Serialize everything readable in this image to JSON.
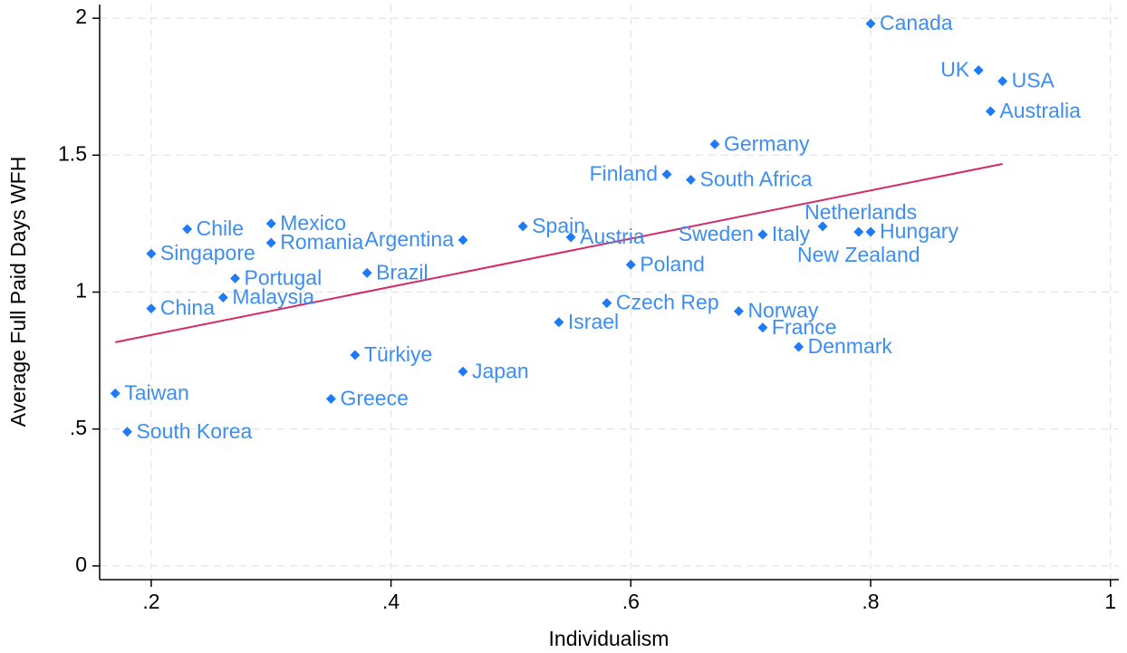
{
  "chart_data": {
    "type": "scatter",
    "x_label": "Individualism",
    "y_label": "Average Full Paid Days WFH",
    "labels": [
      "Canada",
      "UK",
      "USA",
      "Australia",
      "Germany",
      "Finland",
      "South Africa",
      "Netherlands",
      "Italy",
      "Sweden",
      "Hungary",
      "New Zealand",
      "Argentina",
      "Spain",
      "Austria",
      "Poland",
      "Czech Rep",
      "Israel",
      "Norway",
      "France",
      "Denmark",
      "Japan",
      "Greece",
      "Türkiye",
      "Brazil",
      "Mexico",
      "Romania",
      "Chile",
      "Singapore",
      "Portugal",
      "Malaysia",
      "China",
      "Taiwan",
      "South Korea"
    ],
    "x": [
      0.8,
      0.89,
      0.91,
      0.9,
      0.67,
      0.63,
      0.65,
      0.76,
      0.71,
      0.71,
      0.8,
      0.79,
      0.46,
      0.51,
      0.55,
      0.6,
      0.58,
      0.54,
      0.69,
      0.71,
      0.74,
      0.46,
      0.35,
      0.37,
      0.38,
      0.3,
      0.3,
      0.23,
      0.2,
      0.27,
      0.26,
      0.2,
      0.17,
      0.18
    ],
    "values": [
      1.98,
      1.81,
      1.77,
      1.66,
      1.54,
      1.43,
      1.41,
      1.24,
      1.21,
      1.21,
      1.22,
      1.22,
      1.19,
      1.24,
      1.2,
      1.1,
      0.96,
      0.89,
      0.93,
      0.87,
      0.8,
      0.71,
      0.61,
      0.77,
      1.07,
      1.25,
      1.18,
      1.23,
      1.14,
      1.05,
      0.98,
      0.94,
      0.63,
      0.49
    ],
    "color": "#1f7bf5",
    "fit_line": {
      "x": [
        0.17,
        0.91
      ],
      "y": [
        0.817,
        1.468
      ],
      "color": "#d42a68"
    },
    "xlim": [
      0.157,
      1.007
    ],
    "ylim": [
      -0.05,
      2.05
    ],
    "xticks": [
      {
        "value": 0.2,
        "label": ".2"
      },
      {
        "value": 0.4,
        "label": ".4"
      },
      {
        "value": 0.6,
        "label": ".6"
      },
      {
        "value": 0.8,
        "label": ".8"
      },
      1
    ],
    "yticks": [
      0,
      {
        "value": 0.5,
        "label": ".5"
      },
      1,
      1.5,
      2
    ],
    "grid": true
  }
}
